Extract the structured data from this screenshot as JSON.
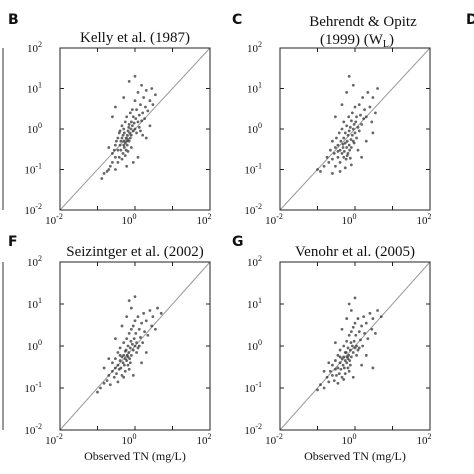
{
  "chart_data": [
    {
      "type": "scatter",
      "panel_letter": "B",
      "title": "Kelly et al. (1987)",
      "title_line2": "",
      "xlabel": "",
      "ylabel": "",
      "xscale": "log",
      "yscale": "log",
      "xlim": [
        0.01,
        100
      ],
      "ylim": [
        0.01,
        100
      ],
      "x_ticks": [
        "10-2",
        "100",
        "102"
      ],
      "y_ticks": [
        "10-2",
        "10-1",
        "100",
        "101",
        "102"
      ],
      "reference_line": "1:1",
      "grid": false,
      "points": [
        [
          0.13,
          0.06
        ],
        [
          0.15,
          0.08
        ],
        [
          0.18,
          0.09
        ],
        [
          0.2,
          0.1
        ],
        [
          0.22,
          0.12
        ],
        [
          0.25,
          0.15
        ],
        [
          0.25,
          0.25
        ],
        [
          0.28,
          0.3
        ],
        [
          0.3,
          0.2
        ],
        [
          0.3,
          0.4
        ],
        [
          0.32,
          0.5
        ],
        [
          0.35,
          0.3
        ],
        [
          0.35,
          0.6
        ],
        [
          0.38,
          0.2
        ],
        [
          0.38,
          0.8
        ],
        [
          0.4,
          0.4
        ],
        [
          0.4,
          0.9
        ],
        [
          0.42,
          0.3
        ],
        [
          0.42,
          0.5
        ],
        [
          0.45,
          0.6
        ],
        [
          0.45,
          1.2
        ],
        [
          0.48,
          0.25
        ],
        [
          0.48,
          0.7
        ],
        [
          0.5,
          0.4
        ],
        [
          0.5,
          0.5
        ],
        [
          0.5,
          1.0
        ],
        [
          0.52,
          0.35
        ],
        [
          0.52,
          0.8
        ],
        [
          0.55,
          0.45
        ],
        [
          0.55,
          1.5
        ],
        [
          0.58,
          0.6
        ],
        [
          0.58,
          0.3
        ],
        [
          0.6,
          0.5
        ],
        [
          0.6,
          2.0
        ],
        [
          0.62,
          0.7
        ],
        [
          0.62,
          0.4
        ],
        [
          0.65,
          0.9
        ],
        [
          0.65,
          0.55
        ],
        [
          0.68,
          1.1
        ],
        [
          0.7,
          0.5
        ],
        [
          0.7,
          1.3
        ],
        [
          0.72,
          0.8
        ],
        [
          0.75,
          2.5
        ],
        [
          0.75,
          0.6
        ],
        [
          0.78,
          1.0
        ],
        [
          0.8,
          1.5
        ],
        [
          0.8,
          0.7
        ],
        [
          0.85,
          3.0
        ],
        [
          0.85,
          1.2
        ],
        [
          0.9,
          0.9
        ],
        [
          0.9,
          2.0
        ],
        [
          0.95,
          1.4
        ],
        [
          1.0,
          1.0
        ],
        [
          1.0,
          5.0
        ],
        [
          1.05,
          1.8
        ],
        [
          1.1,
          0.8
        ],
        [
          1.1,
          3.0
        ],
        [
          1.2,
          1.5
        ],
        [
          1.2,
          8.0
        ],
        [
          1.3,
          2.2
        ],
        [
          1.3,
          1.1
        ],
        [
          1.4,
          4.0
        ],
        [
          1.5,
          1.6
        ],
        [
          1.5,
          12.0
        ],
        [
          1.6,
          2.5
        ],
        [
          1.7,
          6.0
        ],
        [
          1.8,
          1.8
        ],
        [
          1.9,
          3.5
        ],
        [
          2.0,
          9.0
        ],
        [
          2.2,
          2.8
        ],
        [
          2.5,
          5.0
        ],
        [
          2.8,
          10.0
        ],
        [
          3.0,
          4.0
        ],
        [
          3.5,
          7.0
        ],
        [
          0.25,
          2.0
        ],
        [
          0.3,
          3.5
        ],
        [
          0.5,
          6.0
        ],
        [
          0.7,
          15.0
        ],
        [
          1.0,
          20.0
        ],
        [
          0.9,
          0.15
        ],
        [
          1.2,
          0.2
        ],
        [
          0.6,
          0.12
        ],
        [
          2.0,
          0.6
        ],
        [
          0.3,
          0.1
        ],
        [
          0.2,
          0.35
        ],
        [
          0.45,
          0.18
        ],
        [
          0.55,
          0.22
        ],
        [
          0.65,
          0.28
        ],
        [
          0.35,
          0.15
        ],
        [
          0.8,
          0.35
        ],
        [
          1.4,
          0.9
        ],
        [
          1.6,
          0.7
        ],
        [
          2.5,
          1.2
        ]
      ]
    },
    {
      "type": "scatter",
      "panel_letter": "C",
      "title": "Behrendt & Opitz",
      "title_line2": "(1999) (W",
      "title_line2_sub": "L",
      "title_line2_end": ")",
      "xlabel": "",
      "ylabel": "",
      "xscale": "log",
      "yscale": "log",
      "xlim": [
        0.01,
        100
      ],
      "ylim": [
        0.01,
        100
      ],
      "x_ticks": [
        "10-2",
        "100",
        "102"
      ],
      "y_ticks": [
        "10-2",
        "10-1",
        "100",
        "101",
        "102"
      ],
      "reference_line": "1:1",
      "grid": false,
      "points": [
        [
          0.1,
          0.1
        ],
        [
          0.12,
          0.09
        ],
        [
          0.15,
          0.12
        ],
        [
          0.18,
          0.2
        ],
        [
          0.2,
          0.15
        ],
        [
          0.22,
          0.3
        ],
        [
          0.25,
          0.18
        ],
        [
          0.25,
          0.5
        ],
        [
          0.28,
          0.25
        ],
        [
          0.3,
          0.35
        ],
        [
          0.3,
          0.12
        ],
        [
          0.32,
          0.6
        ],
        [
          0.35,
          0.2
        ],
        [
          0.35,
          0.4
        ],
        [
          0.38,
          0.8
        ],
        [
          0.4,
          0.3
        ],
        [
          0.4,
          0.15
        ],
        [
          0.42,
          0.5
        ],
        [
          0.45,
          0.25
        ],
        [
          0.45,
          1.0
        ],
        [
          0.48,
          0.35
        ],
        [
          0.5,
          0.2
        ],
        [
          0.5,
          0.6
        ],
        [
          0.5,
          1.5
        ],
        [
          0.52,
          0.28
        ],
        [
          0.55,
          0.45
        ],
        [
          0.55,
          0.8
        ],
        [
          0.58,
          0.18
        ],
        [
          0.6,
          0.35
        ],
        [
          0.6,
          1.2
        ],
        [
          0.62,
          0.5
        ],
        [
          0.65,
          0.25
        ],
        [
          0.65,
          0.7
        ],
        [
          0.68,
          2.0
        ],
        [
          0.7,
          0.4
        ],
        [
          0.7,
          0.9
        ],
        [
          0.72,
          0.3
        ],
        [
          0.75,
          1.1
        ],
        [
          0.78,
          0.55
        ],
        [
          0.8,
          1.6
        ],
        [
          0.8,
          0.35
        ],
        [
          0.85,
          0.7
        ],
        [
          0.85,
          2.5
        ],
        [
          0.9,
          1.0
        ],
        [
          0.9,
          0.5
        ],
        [
          0.95,
          1.3
        ],
        [
          1.0,
          0.8
        ],
        [
          1.0,
          3.5
        ],
        [
          1.05,
          1.5
        ],
        [
          1.1,
          0.6
        ],
        [
          1.1,
          2.0
        ],
        [
          1.2,
          1.1
        ],
        [
          1.3,
          4.0
        ],
        [
          1.3,
          0.9
        ],
        [
          1.4,
          2.2
        ],
        [
          1.5,
          1.3
        ],
        [
          1.6,
          6.0
        ],
        [
          1.7,
          1.8
        ],
        [
          1.8,
          3.0
        ],
        [
          2.0,
          2.0
        ],
        [
          2.2,
          8.0
        ],
        [
          2.5,
          3.5
        ],
        [
          2.8,
          1.5
        ],
        [
          3.0,
          6.0
        ],
        [
          3.5,
          2.5
        ],
        [
          4.0,
          10.0
        ],
        [
          0.3,
          2.0
        ],
        [
          0.45,
          4.0
        ],
        [
          0.6,
          8.0
        ],
        [
          0.9,
          12.0
        ],
        [
          0.7,
          20.0
        ],
        [
          1.5,
          0.2
        ],
        [
          2.0,
          0.5
        ],
        [
          3.0,
          0.8
        ],
        [
          0.4,
          0.09
        ],
        [
          0.25,
          0.08
        ],
        [
          0.55,
          0.11
        ],
        [
          0.8,
          0.13
        ],
        [
          1.2,
          0.3
        ],
        [
          0.35,
          0.28
        ],
        [
          0.48,
          0.42
        ],
        [
          0.62,
          0.22
        ],
        [
          0.75,
          0.19
        ],
        [
          0.95,
          0.45
        ]
      ]
    },
    {
      "type": "scatter",
      "panel_letter": "F",
      "title": "Seizintger et al. (2002)",
      "title_line2": "",
      "xlabel": "Observed TN (mg/L)",
      "ylabel": "",
      "xscale": "log",
      "yscale": "log",
      "xlim": [
        0.01,
        100
      ],
      "ylim": [
        0.01,
        100
      ],
      "x_ticks": [
        "10-2",
        "100",
        "102"
      ],
      "y_ticks": [
        "10-2",
        "10-1",
        "100",
        "101",
        "102"
      ],
      "reference_line": "1:1",
      "grid": false,
      "points": [
        [
          0.1,
          0.08
        ],
        [
          0.12,
          0.1
        ],
        [
          0.15,
          0.13
        ],
        [
          0.18,
          0.15
        ],
        [
          0.2,
          0.2
        ],
        [
          0.22,
          0.12
        ],
        [
          0.25,
          0.25
        ],
        [
          0.25,
          0.4
        ],
        [
          0.28,
          0.18
        ],
        [
          0.3,
          0.3
        ],
        [
          0.3,
          0.5
        ],
        [
          0.32,
          0.22
        ],
        [
          0.35,
          0.35
        ],
        [
          0.35,
          0.7
        ],
        [
          0.38,
          0.28
        ],
        [
          0.4,
          0.45
        ],
        [
          0.4,
          0.9
        ],
        [
          0.42,
          0.3
        ],
        [
          0.45,
          0.55
        ],
        [
          0.45,
          0.2
        ],
        [
          0.48,
          0.4
        ],
        [
          0.5,
          0.6
        ],
        [
          0.5,
          1.2
        ],
        [
          0.52,
          0.35
        ],
        [
          0.55,
          0.5
        ],
        [
          0.55,
          0.25
        ],
        [
          0.58,
          0.8
        ],
        [
          0.6,
          0.45
        ],
        [
          0.6,
          1.5
        ],
        [
          0.62,
          0.6
        ],
        [
          0.65,
          0.35
        ],
        [
          0.65,
          1.0
        ],
        [
          0.68,
          0.7
        ],
        [
          0.7,
          2.0
        ],
        [
          0.72,
          0.5
        ],
        [
          0.75,
          0.9
        ],
        [
          0.78,
          1.3
        ],
        [
          0.8,
          0.6
        ],
        [
          0.8,
          2.5
        ],
        [
          0.85,
          1.1
        ],
        [
          0.9,
          0.8
        ],
        [
          0.9,
          3.0
        ],
        [
          0.95,
          1.5
        ],
        [
          1.0,
          1.0
        ],
        [
          1.0,
          4.0
        ],
        [
          1.05,
          2.0
        ],
        [
          1.1,
          1.2
        ],
        [
          1.2,
          0.9
        ],
        [
          1.2,
          5.0
        ],
        [
          1.3,
          2.5
        ],
        [
          1.4,
          1.6
        ],
        [
          1.5,
          3.5
        ],
        [
          1.6,
          1.2
        ],
        [
          1.7,
          6.0
        ],
        [
          1.8,
          2.2
        ],
        [
          2.0,
          4.0
        ],
        [
          2.2,
          1.8
        ],
        [
          2.5,
          7.0
        ],
        [
          2.8,
          3.0
        ],
        [
          3.0,
          5.0
        ],
        [
          3.5,
          2.5
        ],
        [
          4.0,
          8.0
        ],
        [
          5.0,
          6.0
        ],
        [
          0.3,
          1.5
        ],
        [
          0.45,
          3.0
        ],
        [
          0.6,
          5.0
        ],
        [
          0.8,
          8.0
        ],
        [
          0.7,
          12.0
        ],
        [
          1.0,
          15.0
        ],
        [
          0.15,
          0.3
        ],
        [
          0.2,
          0.5
        ],
        [
          0.9,
          0.2
        ],
        [
          1.5,
          0.4
        ],
        [
          2.0,
          0.7
        ],
        [
          0.35,
          0.14
        ],
        [
          0.5,
          0.18
        ],
        [
          0.7,
          0.28
        ],
        [
          0.4,
          0.6
        ],
        [
          0.55,
          0.75
        ],
        [
          0.65,
          0.55
        ],
        [
          0.75,
          0.4
        ],
        [
          1.1,
          0.7
        ],
        [
          1.3,
          1.0
        ]
      ]
    },
    {
      "type": "scatter",
      "panel_letter": "G",
      "title": "Venohr et al. (2005)",
      "title_line2": "",
      "xlabel": "Observed TN (mg/L)",
      "ylabel": "",
      "xscale": "log",
      "yscale": "log",
      "xlim": [
        0.01,
        100
      ],
      "ylim": [
        0.01,
        100
      ],
      "x_ticks": [
        "10-2",
        "100",
        "102"
      ],
      "y_ticks": [
        "10-2",
        "10-1",
        "100",
        "101",
        "102"
      ],
      "reference_line": "1:1",
      "grid": false,
      "points": [
        [
          0.1,
          0.09
        ],
        [
          0.12,
          0.12
        ],
        [
          0.15,
          0.1
        ],
        [
          0.18,
          0.18
        ],
        [
          0.2,
          0.14
        ],
        [
          0.22,
          0.25
        ],
        [
          0.25,
          0.2
        ],
        [
          0.25,
          0.35
        ],
        [
          0.28,
          0.15
        ],
        [
          0.3,
          0.28
        ],
        [
          0.3,
          0.45
        ],
        [
          0.32,
          0.2
        ],
        [
          0.35,
          0.3
        ],
        [
          0.35,
          0.6
        ],
        [
          0.38,
          0.22
        ],
        [
          0.4,
          0.4
        ],
        [
          0.4,
          0.8
        ],
        [
          0.42,
          0.28
        ],
        [
          0.45,
          0.5
        ],
        [
          0.45,
          0.18
        ],
        [
          0.48,
          0.35
        ],
        [
          0.5,
          0.55
        ],
        [
          0.5,
          1.0
        ],
        [
          0.52,
          0.3
        ],
        [
          0.55,
          0.45
        ],
        [
          0.55,
          0.22
        ],
        [
          0.58,
          0.7
        ],
        [
          0.6,
          0.4
        ],
        [
          0.6,
          1.3
        ],
        [
          0.62,
          0.55
        ],
        [
          0.65,
          0.3
        ],
        [
          0.65,
          0.9
        ],
        [
          0.68,
          0.6
        ],
        [
          0.7,
          1.8
        ],
        [
          0.72,
          0.45
        ],
        [
          0.75,
          0.8
        ],
        [
          0.78,
          1.2
        ],
        [
          0.8,
          0.55
        ],
        [
          0.8,
          2.2
        ],
        [
          0.85,
          1.0
        ],
        [
          0.9,
          0.7
        ],
        [
          0.9,
          2.8
        ],
        [
          0.95,
          1.3
        ],
        [
          1.0,
          0.9
        ],
        [
          1.0,
          3.5
        ],
        [
          1.05,
          1.8
        ],
        [
          1.1,
          1.0
        ],
        [
          1.2,
          0.8
        ],
        [
          1.2,
          4.5
        ],
        [
          1.3,
          2.2
        ],
        [
          1.4,
          1.4
        ],
        [
          1.5,
          3.0
        ],
        [
          1.6,
          1.0
        ],
        [
          1.7,
          5.0
        ],
        [
          1.8,
          2.0
        ],
        [
          2.0,
          3.5
        ],
        [
          2.2,
          1.5
        ],
        [
          2.5,
          6.0
        ],
        [
          2.8,
          2.5
        ],
        [
          3.0,
          4.5
        ],
        [
          3.5,
          2.0
        ],
        [
          4.0,
          7.0
        ],
        [
          5.0,
          5.0
        ],
        [
          0.3,
          1.2
        ],
        [
          0.45,
          2.5
        ],
        [
          0.6,
          4.5
        ],
        [
          0.8,
          7.0
        ],
        [
          0.7,
          10.0
        ],
        [
          1.0,
          14.0
        ],
        [
          0.15,
          0.25
        ],
        [
          0.2,
          0.4
        ],
        [
          0.9,
          0.18
        ],
        [
          1.5,
          0.35
        ],
        [
          2.0,
          0.6
        ],
        [
          3.0,
          0.3
        ],
        [
          0.35,
          0.13
        ],
        [
          0.5,
          0.16
        ],
        [
          0.7,
          0.25
        ],
        [
          0.4,
          0.55
        ],
        [
          0.55,
          0.7
        ],
        [
          0.65,
          0.5
        ],
        [
          0.75,
          0.35
        ],
        [
          1.1,
          0.6
        ],
        [
          1.3,
          0.9
        ]
      ]
    }
  ],
  "page": {
    "edge_letter": "D"
  }
}
